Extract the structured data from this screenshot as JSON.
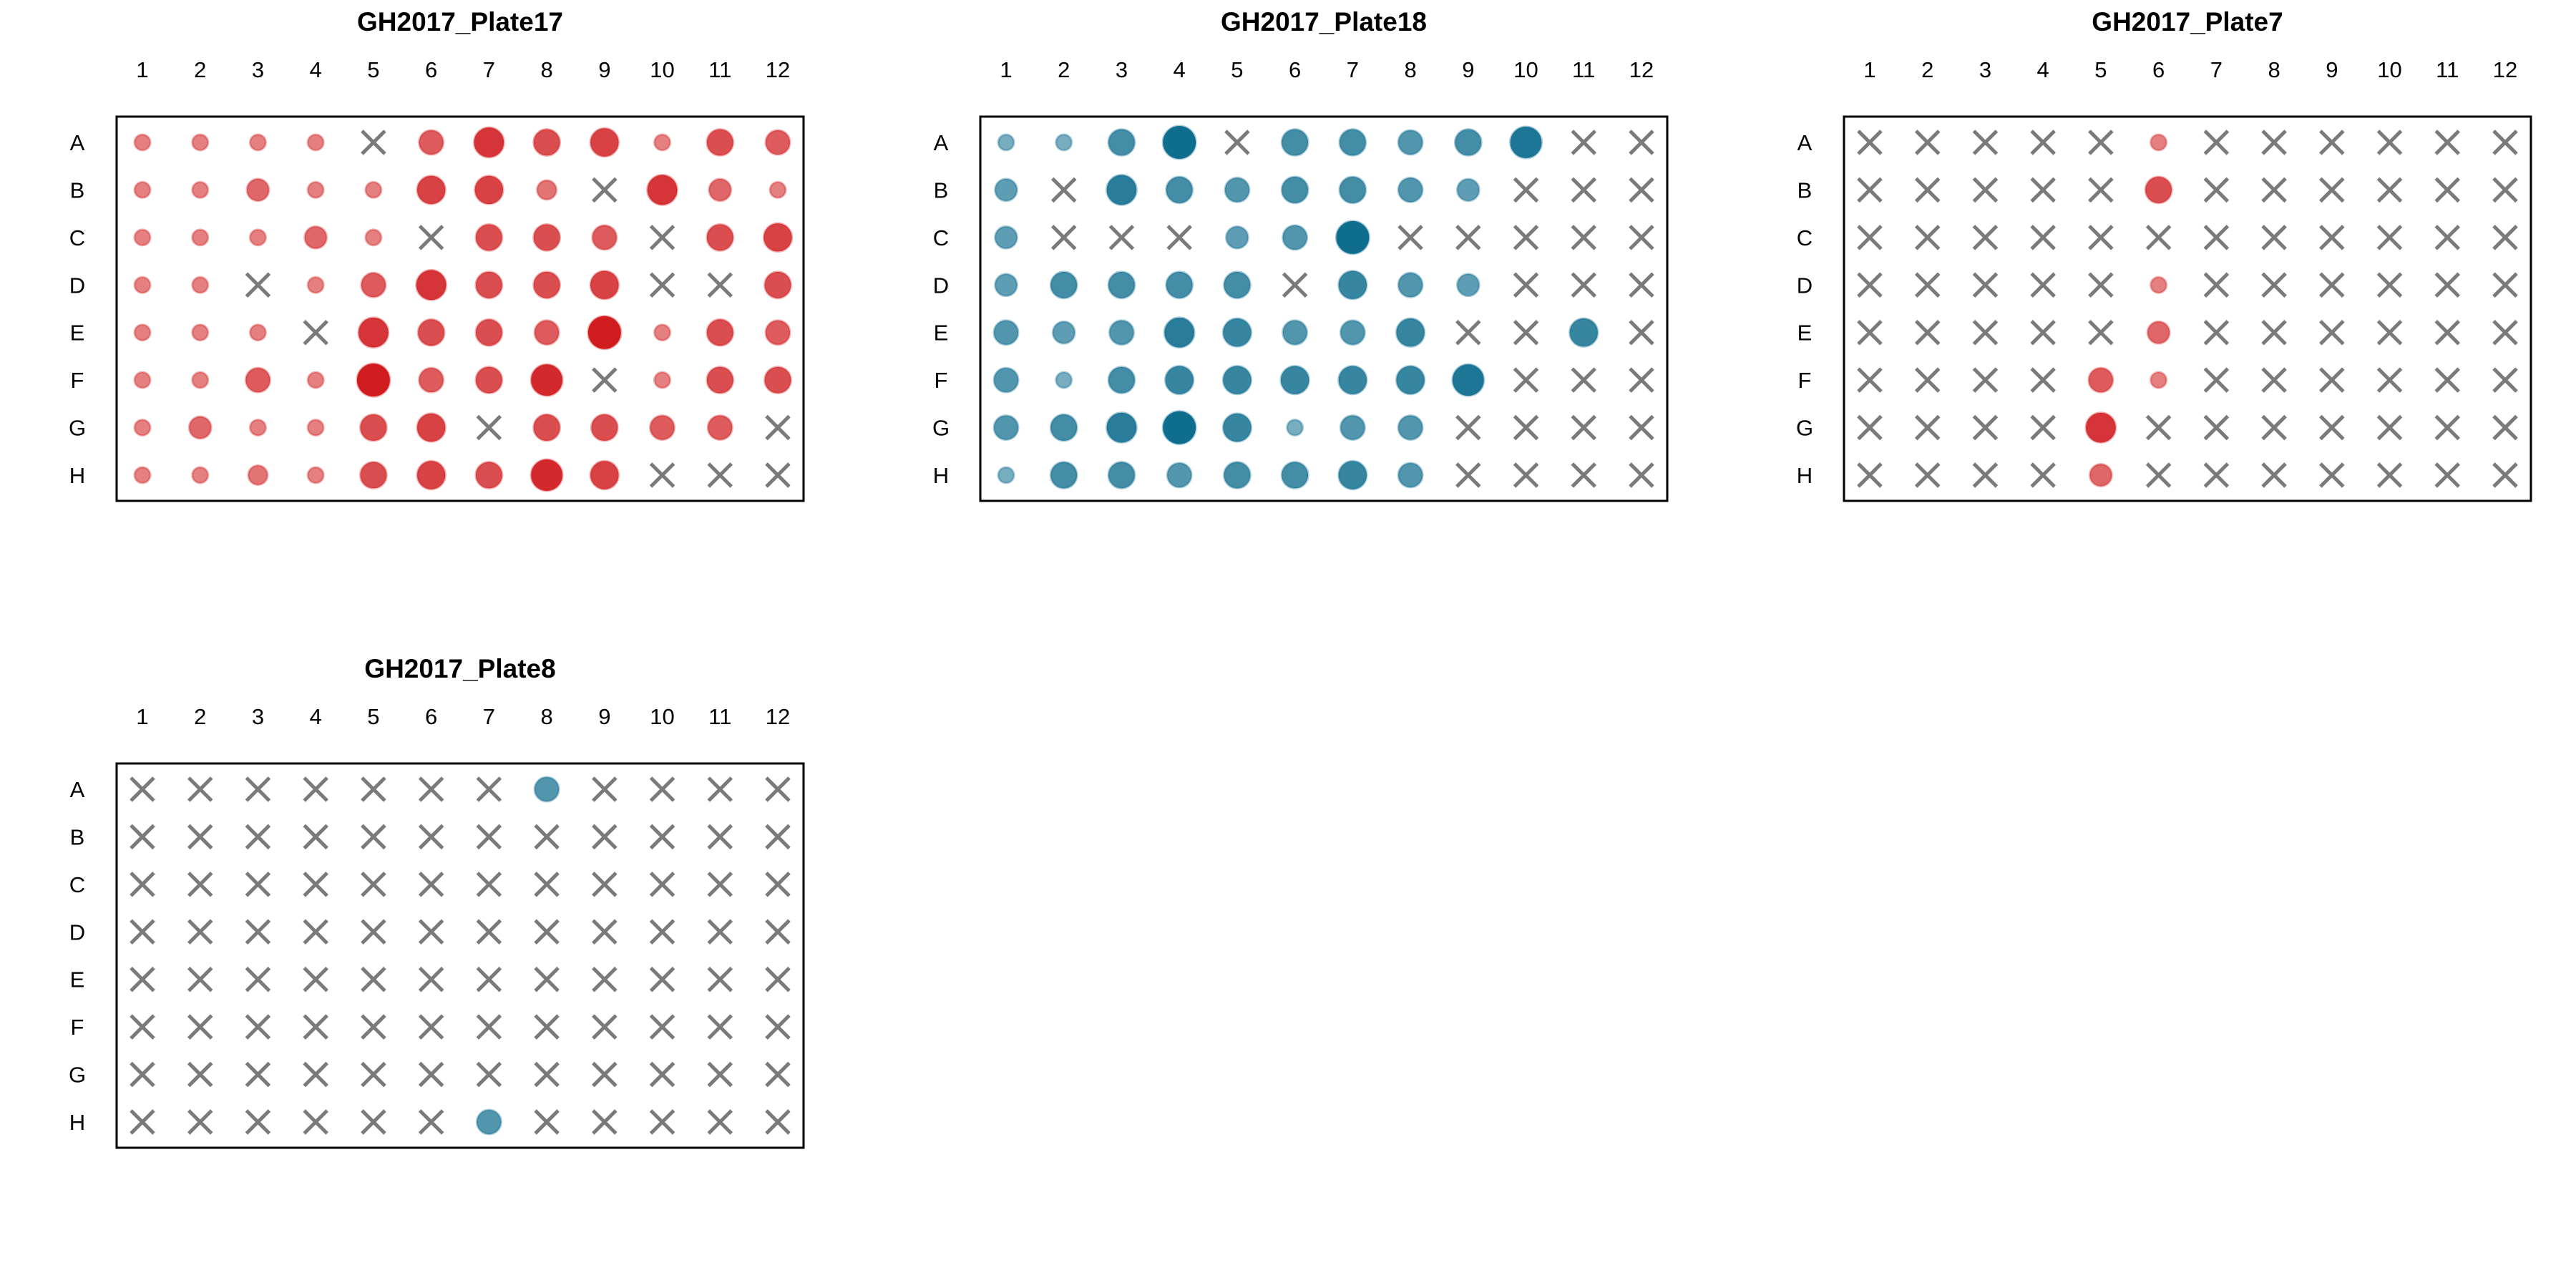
{
  "colors": {
    "red": "#d01c1f",
    "blue": "#0f6d8e",
    "missing": "#7a7a7a",
    "frame": "#000000"
  },
  "legend": {
    "missing_marker": "x-icon"
  },
  "chart_data": [
    {
      "type": "scatter",
      "title": "GH2017_Plate17",
      "color": "red",
      "columns": [
        "1",
        "2",
        "3",
        "4",
        "5",
        "6",
        "7",
        "8",
        "9",
        "10",
        "11",
        "12"
      ],
      "rows": [
        "A",
        "B",
        "C",
        "D",
        "E",
        "F",
        "G",
        "H"
      ],
      "values": [
        [
          1,
          1,
          1,
          1,
          null,
          4,
          7,
          5,
          6,
          1,
          5,
          4
        ],
        [
          1,
          1,
          3,
          1,
          1,
          6,
          6,
          2,
          null,
          7,
          3,
          1
        ],
        [
          1,
          1,
          1,
          3,
          1,
          null,
          5,
          5,
          4,
          null,
          5,
          6
        ],
        [
          1,
          1,
          null,
          1,
          4,
          7,
          5,
          5,
          6,
          null,
          null,
          5
        ],
        [
          1,
          1,
          1,
          null,
          7,
          5,
          5,
          4,
          9,
          1,
          5,
          4
        ],
        [
          1,
          1,
          4,
          1,
          9,
          4,
          5,
          8,
          null,
          1,
          5,
          5
        ],
        [
          1,
          3,
          1,
          1,
          5,
          6,
          null,
          5,
          5,
          4,
          4,
          null
        ],
        [
          1,
          1,
          2,
          1,
          5,
          6,
          5,
          8,
          6,
          null,
          null,
          null
        ]
      ]
    },
    {
      "type": "scatter",
      "title": "GH2017_Plate18",
      "color": "blue",
      "columns": [
        "1",
        "2",
        "3",
        "4",
        "5",
        "6",
        "7",
        "8",
        "9",
        "10",
        "11",
        "12"
      ],
      "rows": [
        "A",
        "B",
        "C",
        "D",
        "E",
        "F",
        "G",
        "H"
      ],
      "values": [
        [
          1,
          1,
          5,
          9,
          null,
          5,
          5,
          4,
          5,
          8,
          null,
          null
        ],
        [
          3,
          null,
          7,
          5,
          4,
          5,
          5,
          4,
          3,
          null,
          null,
          null
        ],
        [
          3,
          null,
          null,
          null,
          3,
          4,
          9,
          null,
          null,
          null,
          null,
          null
        ],
        [
          3,
          5,
          5,
          5,
          5,
          null,
          6,
          4,
          3,
          null,
          null,
          null
        ],
        [
          4,
          3,
          4,
          7,
          6,
          4,
          4,
          6,
          null,
          null,
          6,
          null
        ],
        [
          4,
          1,
          5,
          6,
          6,
          6,
          6,
          6,
          8,
          null,
          null,
          null
        ],
        [
          4,
          5,
          7,
          9,
          6,
          1,
          4,
          4,
          null,
          null,
          null,
          null
        ],
        [
          1,
          5,
          5,
          4,
          5,
          5,
          6,
          4,
          null,
          null,
          null,
          null
        ]
      ]
    },
    {
      "type": "scatter",
      "title": "GH2017_Plate7",
      "color": "red",
      "columns": [
        "1",
        "2",
        "3",
        "4",
        "5",
        "6",
        "7",
        "8",
        "9",
        "10",
        "11",
        "12"
      ],
      "rows": [
        "A",
        "B",
        "C",
        "D",
        "E",
        "F",
        "G",
        "H"
      ],
      "values": [
        [
          null,
          null,
          null,
          null,
          null,
          1,
          null,
          null,
          null,
          null,
          null,
          null
        ],
        [
          null,
          null,
          null,
          null,
          null,
          5,
          null,
          null,
          null,
          null,
          null,
          null
        ],
        [
          null,
          null,
          null,
          null,
          null,
          null,
          null,
          null,
          null,
          null,
          null,
          null
        ],
        [
          null,
          null,
          null,
          null,
          null,
          1,
          null,
          null,
          null,
          null,
          null,
          null
        ],
        [
          null,
          null,
          null,
          null,
          null,
          3,
          null,
          null,
          null,
          null,
          null,
          null
        ],
        [
          null,
          null,
          null,
          null,
          4,
          1,
          null,
          null,
          null,
          null,
          null,
          null
        ],
        [
          null,
          null,
          null,
          null,
          7,
          null,
          null,
          null,
          null,
          null,
          null,
          null
        ],
        [
          null,
          null,
          null,
          null,
          3,
          null,
          null,
          null,
          null,
          null,
          null,
          null
        ]
      ]
    },
    {
      "type": "scatter",
      "title": "GH2017_Plate8",
      "color": "blue",
      "columns": [
        "1",
        "2",
        "3",
        "4",
        "5",
        "6",
        "7",
        "8",
        "9",
        "10",
        "11",
        "12"
      ],
      "rows": [
        "A",
        "B",
        "C",
        "D",
        "E",
        "F",
        "G",
        "H"
      ],
      "values": [
        [
          null,
          null,
          null,
          null,
          null,
          null,
          null,
          4,
          null,
          null,
          null,
          null
        ],
        [
          null,
          null,
          null,
          null,
          null,
          null,
          null,
          null,
          null,
          null,
          null,
          null
        ],
        [
          null,
          null,
          null,
          null,
          null,
          null,
          null,
          null,
          null,
          null,
          null,
          null
        ],
        [
          null,
          null,
          null,
          null,
          null,
          null,
          null,
          null,
          null,
          null,
          null,
          null
        ],
        [
          null,
          null,
          null,
          null,
          null,
          null,
          null,
          null,
          null,
          null,
          null,
          null
        ],
        [
          null,
          null,
          null,
          null,
          null,
          null,
          null,
          null,
          null,
          null,
          null,
          null
        ],
        [
          null,
          null,
          null,
          null,
          null,
          null,
          null,
          null,
          null,
          null,
          null,
          null
        ],
        [
          null,
          null,
          null,
          null,
          null,
          null,
          4,
          null,
          null,
          null,
          null,
          null
        ]
      ]
    }
  ]
}
